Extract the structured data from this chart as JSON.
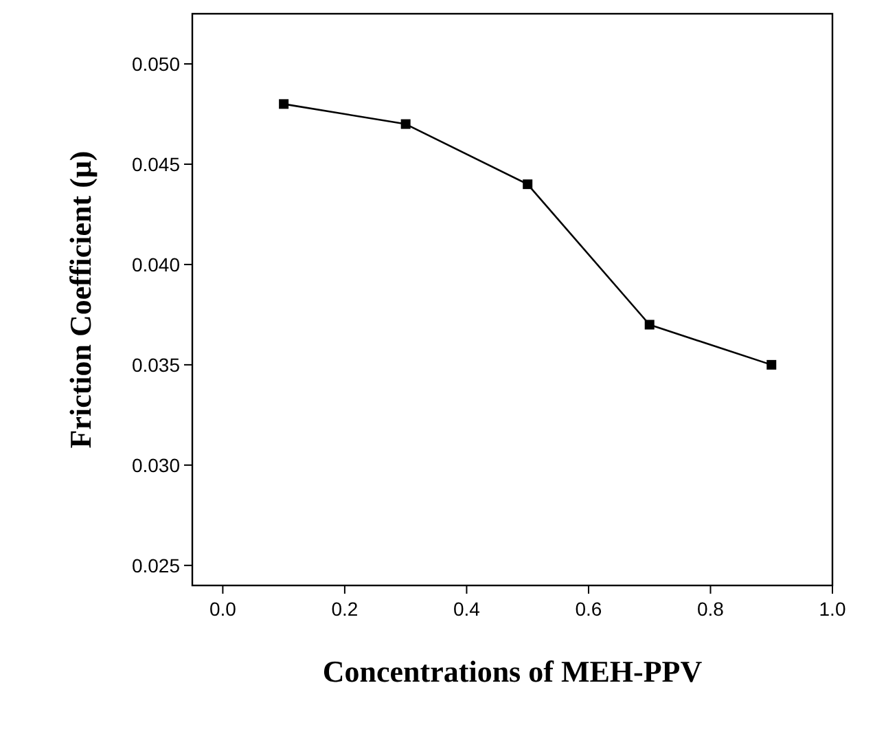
{
  "chart_data": {
    "type": "line",
    "xlabel": "Concentrations of MEH-PPV",
    "ylabel": "Friction Coefficient (μ)",
    "x": [
      0.1,
      0.3,
      0.5,
      0.7,
      0.9
    ],
    "series": [
      {
        "color": "#000000",
        "values": [
          0.048,
          0.047,
          0.044,
          0.037,
          0.035
        ]
      }
    ],
    "xlim": [
      -0.05,
      1.0
    ],
    "xticks": [
      {
        "value": 0,
        "label": "0.0"
      },
      0.2,
      0.4,
      0.6,
      0.8,
      {
        "value": 1,
        "label": "1.0"
      }
    ],
    "ylim": [
      0.024,
      0.0525
    ],
    "yticks": [
      0.025,
      {
        "value": 0.03,
        "label": "0.030"
      },
      0.035,
      {
        "value": 0.04,
        "label": "0.040"
      },
      0.045,
      {
        "value": 0.05,
        "label": "0.050"
      }
    ],
    "marker": "square",
    "line_style": "solid"
  }
}
